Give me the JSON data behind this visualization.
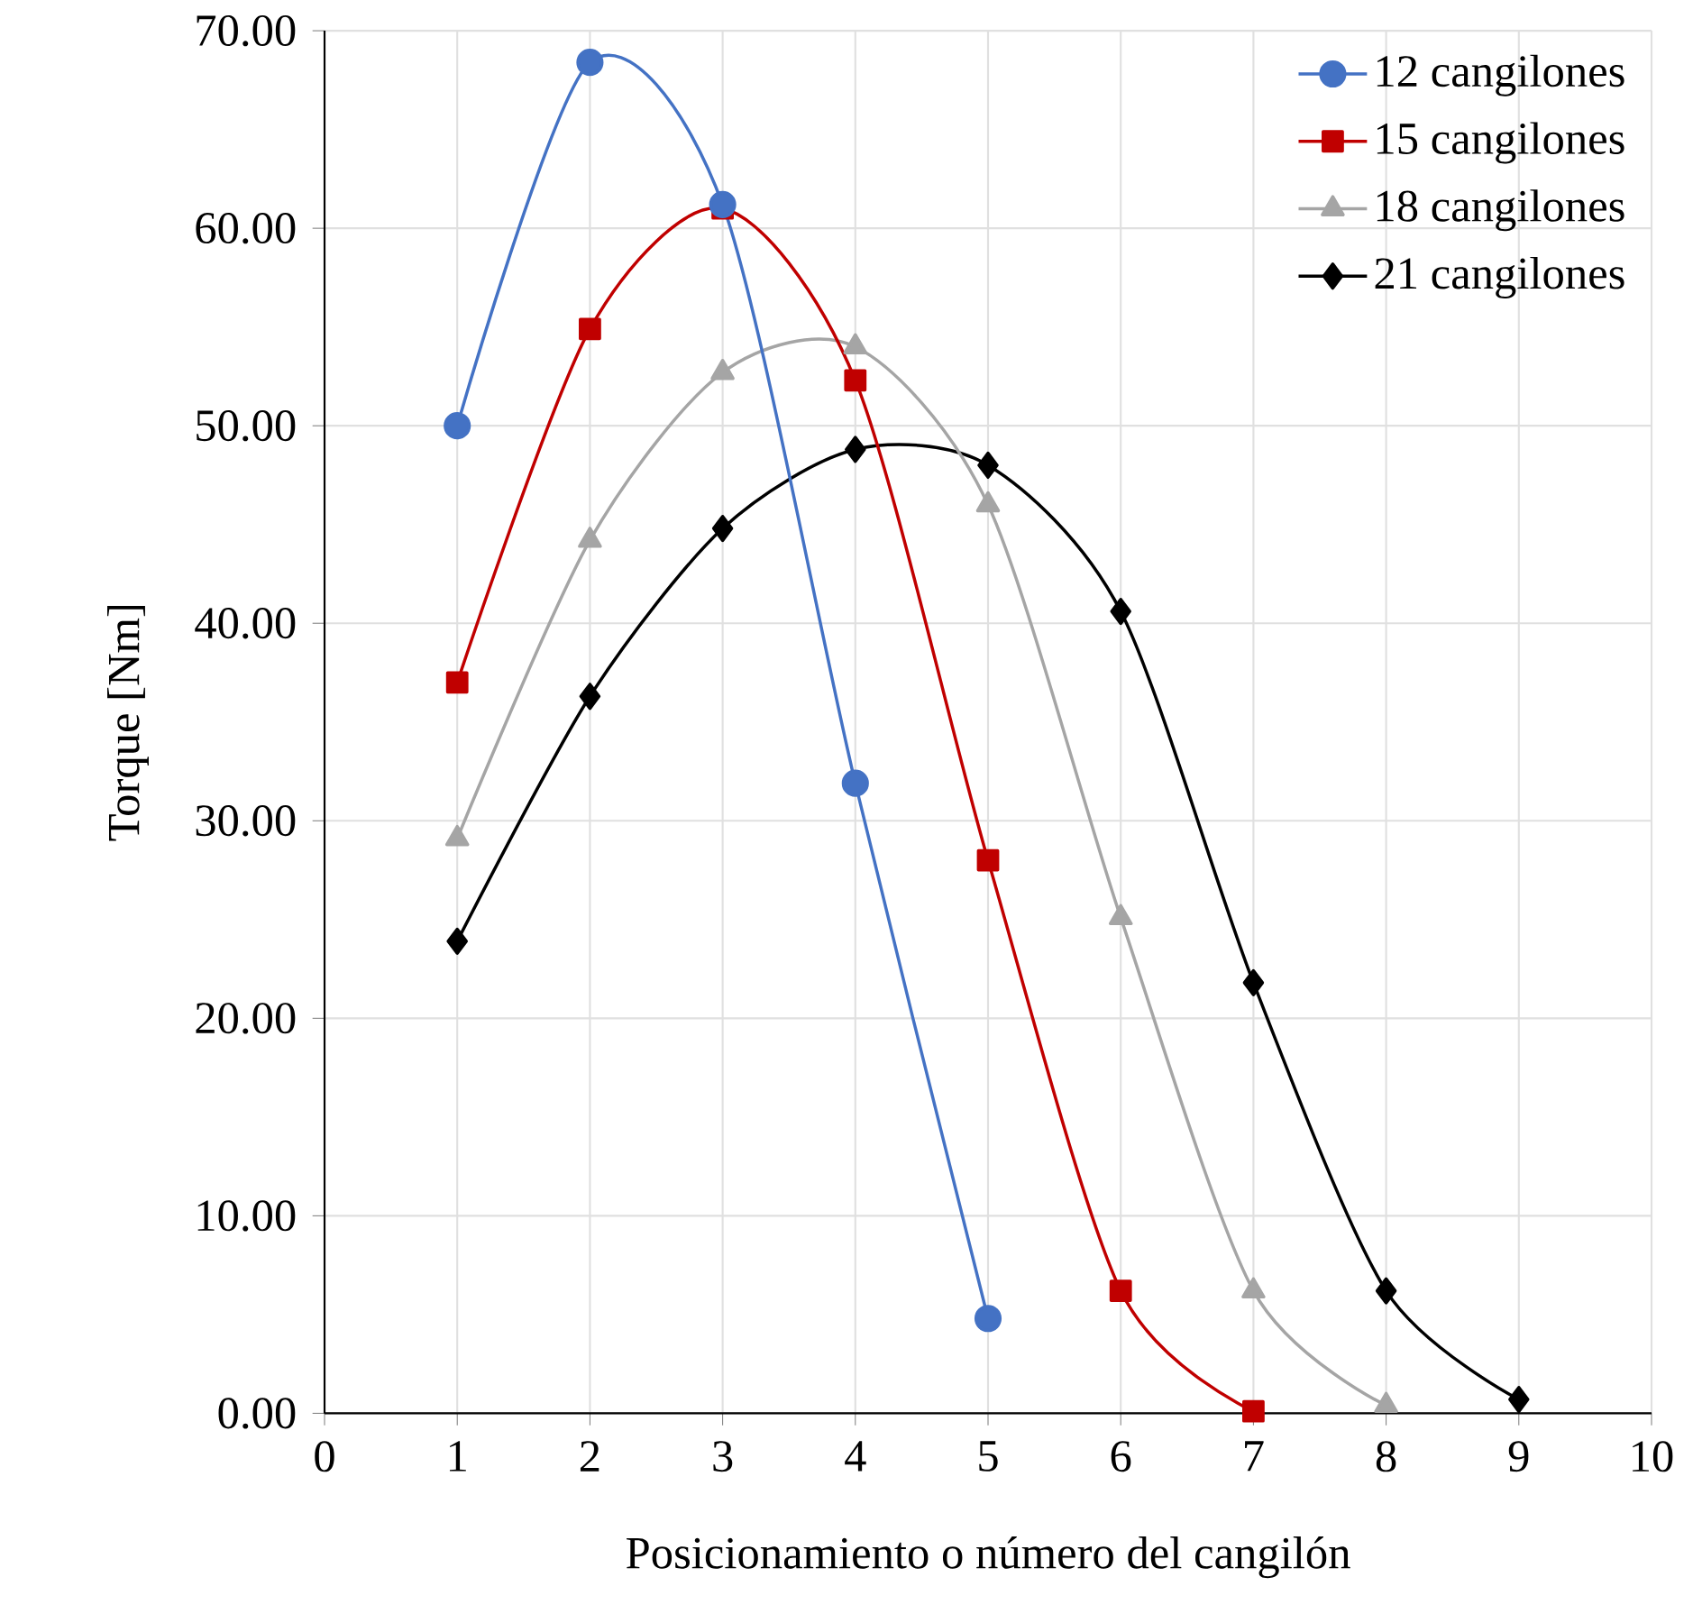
{
  "chart_data": {
    "type": "line",
    "xlabel": "Posicionamiento o número del cangilón",
    "ylabel": "Torque [Nm]",
    "xlim": [
      0,
      10
    ],
    "xticks": [
      0,
      1,
      2,
      3,
      4,
      5,
      6,
      7,
      8,
      9,
      10
    ],
    "ylim": [
      0,
      70
    ],
    "yticks": [
      {
        "value": 0,
        "label": "0.00"
      },
      {
        "value": 10,
        "label": "10.00"
      },
      {
        "value": 20,
        "label": "20.00"
      },
      {
        "value": 30,
        "label": "30.00"
      },
      {
        "value": 40,
        "label": "40.00"
      },
      {
        "value": 50,
        "label": "50.00"
      },
      {
        "value": 60,
        "label": "60.00"
      },
      {
        "value": 70,
        "label": "70.00"
      }
    ],
    "grid": true,
    "legend": "top right",
    "line_style": "solid",
    "series": [
      {
        "name": "12 cangilones",
        "color": "#4472c4",
        "marker": "circle",
        "x": [
          1,
          2,
          3,
          4,
          5
        ],
        "values": [
          50.0,
          68.4,
          61.2,
          31.9,
          4.8
        ]
      },
      {
        "name": "15 cangilones",
        "color": "#c00000",
        "marker": "square",
        "x": [
          1,
          2,
          3,
          4,
          5,
          6,
          7
        ],
        "values": [
          37.0,
          54.9,
          61.0,
          52.3,
          28.0,
          6.2,
          0.1
        ]
      },
      {
        "name": "18 cangilones",
        "color": "#a5a5a5",
        "marker": "triangle",
        "x": [
          1,
          2,
          3,
          4,
          5,
          6,
          7,
          8
        ],
        "values": [
          29.1,
          44.2,
          52.7,
          54.0,
          46.0,
          25.1,
          6.2,
          0.4
        ]
      },
      {
        "name": "21 cangilones",
        "color": "#000000",
        "marker": "diamond",
        "x": [
          1,
          2,
          3,
          4,
          5,
          6,
          7,
          8,
          9
        ],
        "values": [
          23.9,
          36.3,
          44.8,
          48.8,
          48.0,
          40.6,
          21.8,
          6.2,
          0.7
        ]
      }
    ]
  }
}
